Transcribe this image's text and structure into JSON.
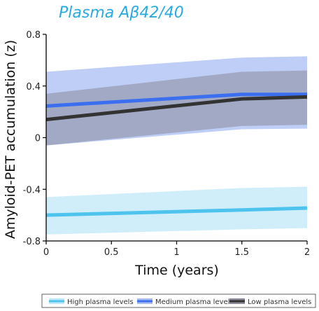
{
  "chart_data": {
    "type": "line",
    "title": "Plasma Aβ42/40",
    "xlabel": "Time (years)",
    "ylabel": "Amyloid-PET accumulation (z)",
    "xlim": [
      0,
      2
    ],
    "ylim": [
      -0.8,
      0.8
    ],
    "x_ticks": [
      "0",
      "0.5",
      "1",
      "1.5",
      "2"
    ],
    "y_ticks": [
      "0.8",
      "0.4",
      "0",
      "-0.4",
      "-0.8"
    ],
    "x": [
      0,
      1.5,
      2
    ],
    "series": [
      {
        "name": "High plasma levels",
        "color": "#4dc3ee",
        "band_color": "#bfe8f8",
        "values": [
          -0.6,
          -0.56,
          -0.545
        ],
        "upper": [
          -0.46,
          -0.39,
          -0.38
        ],
        "lower": [
          -0.75,
          -0.71,
          -0.7
        ]
      },
      {
        "name": "Medium plasma levels",
        "color": "#3c6ff0",
        "band_color": "#a9bdf3",
        "values": [
          0.245,
          0.335,
          0.335
        ],
        "upper": [
          0.51,
          0.62,
          0.63
        ],
        "lower": [
          -0.06,
          0.065,
          0.07
        ]
      },
      {
        "name": "Low plasma levels",
        "color": "#333333",
        "band_color": "#8a8a9a",
        "values": [
          0.14,
          0.3,
          0.315
        ],
        "upper": [
          0.34,
          0.51,
          0.52
        ],
        "lower": [
          -0.06,
          0.09,
          0.1
        ]
      }
    ],
    "legend_position": "bottom",
    "grid": false
  }
}
